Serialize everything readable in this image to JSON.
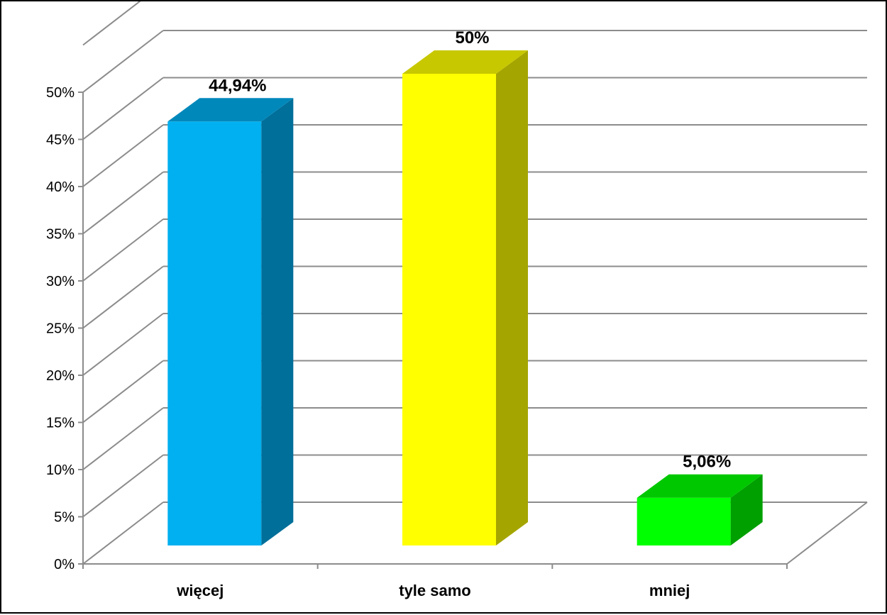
{
  "chart_data": {
    "type": "bar",
    "style": "3d-column",
    "categories": [
      "więcej",
      "tyle samo",
      "mniej"
    ],
    "values": [
      44.94,
      50,
      5.06
    ],
    "data_labels": [
      "44,94%",
      "50%",
      "5,06%"
    ],
    "y_ticks": [
      "0%",
      "5%",
      "10%",
      "15%",
      "20%",
      "25%",
      "30%",
      "35%",
      "40%",
      "45%",
      "50%"
    ],
    "ylim": [
      0,
      50
    ],
    "grid": true,
    "legend": "none",
    "title": "",
    "xlabel": "",
    "ylabel": "",
    "colors": [
      {
        "front": "#00b0f0",
        "side": "#006f9a",
        "top": "#0088bb"
      },
      {
        "front": "#ffff00",
        "side": "#a5a500",
        "top": "#c8c800"
      },
      {
        "front": "#00ff00",
        "side": "#00a000",
        "top": "#00c800"
      }
    ],
    "gridline_color": "#8c8c8c"
  }
}
